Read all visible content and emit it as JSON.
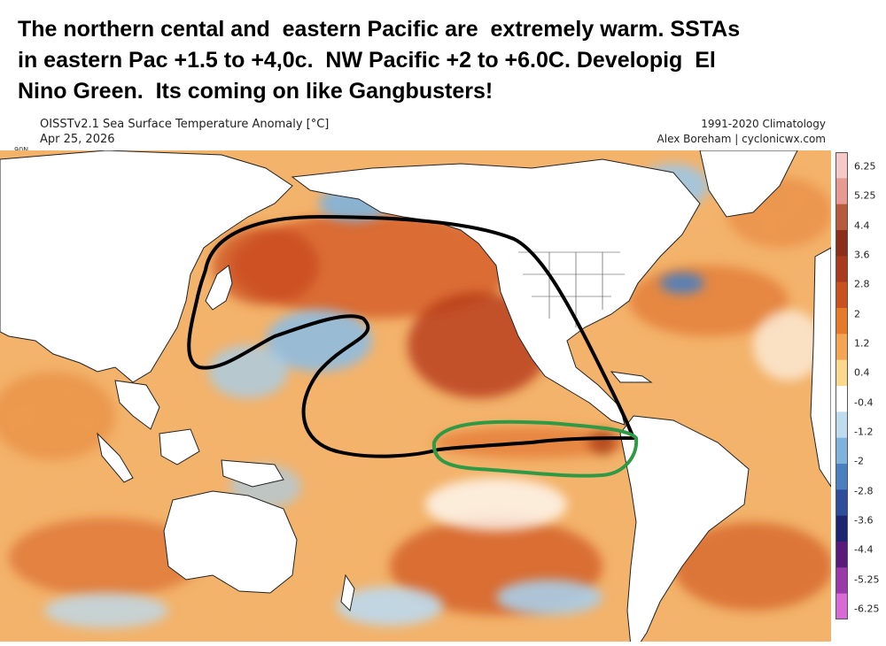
{
  "headline": {
    "line1": "The northern cental and  eastern Pacific are  extremely warm. SSTAs",
    "line2": "in eastern Pac +1.5 to +4,0c.  NW Pacific +2 to +6.0C. Developig  El",
    "line3": "Nino Green.  Its coming on like Gangbusters!"
  },
  "map": {
    "title": "OISSTv2.1 Sea Surface Temperature Anomaly [°C]",
    "date": "Apr 25, 2026",
    "climatology": "1991-2020 Climatology",
    "credit": "Alex Boreham | cyclonicwx.com",
    "lat_tick": "90N",
    "ocean_color": "#f3b36b",
    "land_color": "#ffffff",
    "annotations": [
      {
        "name": "warm-north-pacific-outline",
        "color": "#000000"
      },
      {
        "name": "el-nino-outline",
        "color": "#2e9a45"
      }
    ]
  },
  "colorbar": {
    "labels": [
      "6.25",
      "5.25",
      "4.4",
      "3.6",
      "2.8",
      "2",
      "1.2",
      "0.4",
      "-0.4",
      "-1.2",
      "-2",
      "-2.8",
      "-3.6",
      "-4.4",
      "-5.25",
      "-6.25"
    ],
    "colors": [
      "#f6c9c9",
      "#e79a92",
      "#b85b3c",
      "#8b2f1a",
      "#a93a1d",
      "#c9501f",
      "#e57a2a",
      "#f3a553",
      "#fbd88e",
      "#ffffff",
      "#bfdcef",
      "#7fb3dc",
      "#4a80c0",
      "#2e4e9a",
      "#1d2470",
      "#5a1a7a",
      "#9a3aa8",
      "#d86ad6"
    ]
  }
}
